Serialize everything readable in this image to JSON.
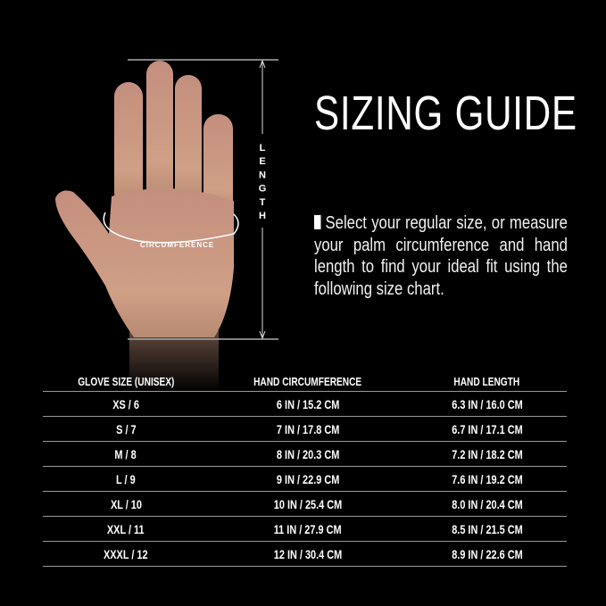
{
  "title": "SIZING GUIDE",
  "description": "Select your regular size, or measure your palm circumference and hand length to find your ideal fit using the following size chart.",
  "illustration": {
    "length_label": "LENGTH",
    "circumference_label": "CIRCUMFERENCE"
  },
  "table": {
    "headers": [
      "GLOVE SIZE  (UNISEX)",
      "HAND CIRCUMFERENCE",
      "HAND LENGTH"
    ],
    "rows": [
      [
        "XS / 6",
        "6 IN / 15.2 CM",
        "6.3 IN / 16.0 CM"
      ],
      [
        "S / 7",
        "7 IN / 17.8 CM",
        "6.7 IN / 17.1 CM"
      ],
      [
        "M / 8",
        "8 IN / 20.3 CM",
        "7.2 IN / 18.2 CM"
      ],
      [
        "L / 9",
        "9 IN / 22.9 CM",
        "7.6 IN / 19.2 CM"
      ],
      [
        "XL / 10",
        "10 IN / 25.4 CM",
        "8.0 IN / 20.4 CM"
      ],
      [
        "XXL / 11",
        "11 IN / 27.9 CM",
        "8.5 IN / 21.5 CM"
      ],
      [
        "XXXL / 12",
        "12 IN / 30.4 CM",
        "8.9 IN / 22.6 CM"
      ]
    ]
  },
  "colors": {
    "background": "#000000",
    "text": "#ffffff",
    "skin": "#c9977f"
  }
}
